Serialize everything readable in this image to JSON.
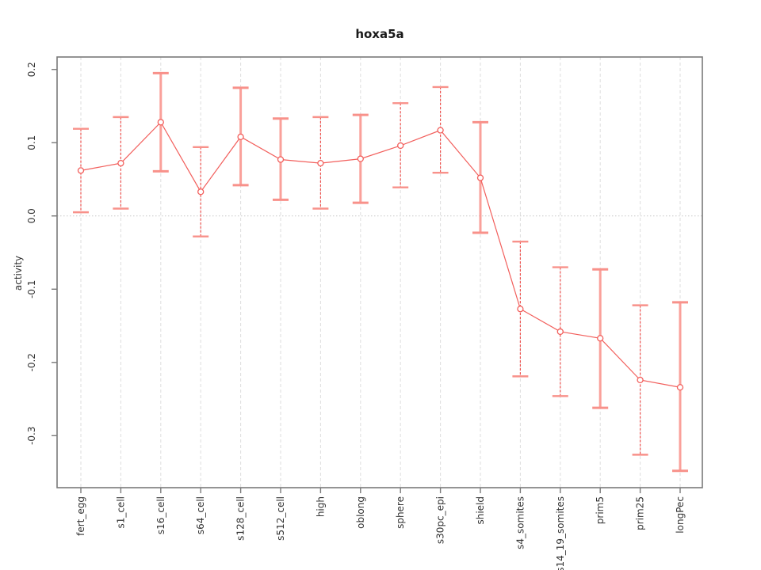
{
  "window": {
    "background": "#ffffff"
  },
  "chart_data": {
    "type": "line",
    "title": "hoxa5a",
    "xlabel": "",
    "ylabel": "activity",
    "legend_position": "none",
    "grid": {
      "vertical_dashed": true,
      "zero_dotted_line": true
    },
    "categories": [
      "fert_egg",
      "s1_cell",
      "s16_cell",
      "s64_cell",
      "s128_cell",
      "s512_cell",
      "high",
      "oblong",
      "sphere",
      "s30pc_epi",
      "shield",
      "s4_somites",
      "s14_19_somites",
      "prim5",
      "prim25",
      "longPec"
    ],
    "series": [
      {
        "name": "activity",
        "means": [
          0.062,
          0.072,
          0.128,
          0.033,
          0.108,
          0.077,
          0.072,
          0.078,
          0.096,
          0.117,
          0.052,
          -0.127,
          -0.158,
          -0.167,
          -0.224,
          -0.234
        ],
        "lower": [
          0.005,
          0.01,
          0.061,
          -0.028,
          0.042,
          0.022,
          0.01,
          0.018,
          0.039,
          0.059,
          -0.023,
          -0.219,
          -0.246,
          -0.262,
          -0.326,
          -0.348
        ],
        "upper": [
          0.119,
          0.135,
          0.195,
          0.094,
          0.175,
          0.133,
          0.135,
          0.138,
          0.154,
          0.176,
          0.128,
          -0.035,
          -0.07,
          -0.073,
          -0.122,
          -0.118
        ],
        "bar_styles": [
          "dashed",
          "dashed",
          "solid",
          "dashed",
          "solid",
          "solid",
          "dashed",
          "solid",
          "dashed",
          "dashed",
          "solid",
          "dashed",
          "dashed",
          "solid",
          "dashed",
          "solid"
        ]
      }
    ],
    "yticks": [
      0.2,
      0.1,
      0.0,
      -0.1,
      -0.2,
      -0.3
    ],
    "ytick_labels": [
      "0.2",
      "0.1",
      "0.0",
      "-0.1",
      "-0.2",
      "-0.3"
    ],
    "ylim": [
      -0.371,
      0.217
    ],
    "colors": {
      "line": "#f25f5c",
      "marker_stroke": "#f25f5c",
      "marker_fill": "#ffffff",
      "solid_bar": "#faa09a",
      "dashed_bar": "#ef5350",
      "cap": "#f8918a",
      "gridline": "#dedede",
      "zero_line": "#c8c8c8",
      "box": "#7a7a7a",
      "tick": "#7a7a7a",
      "text": "#333333"
    }
  }
}
